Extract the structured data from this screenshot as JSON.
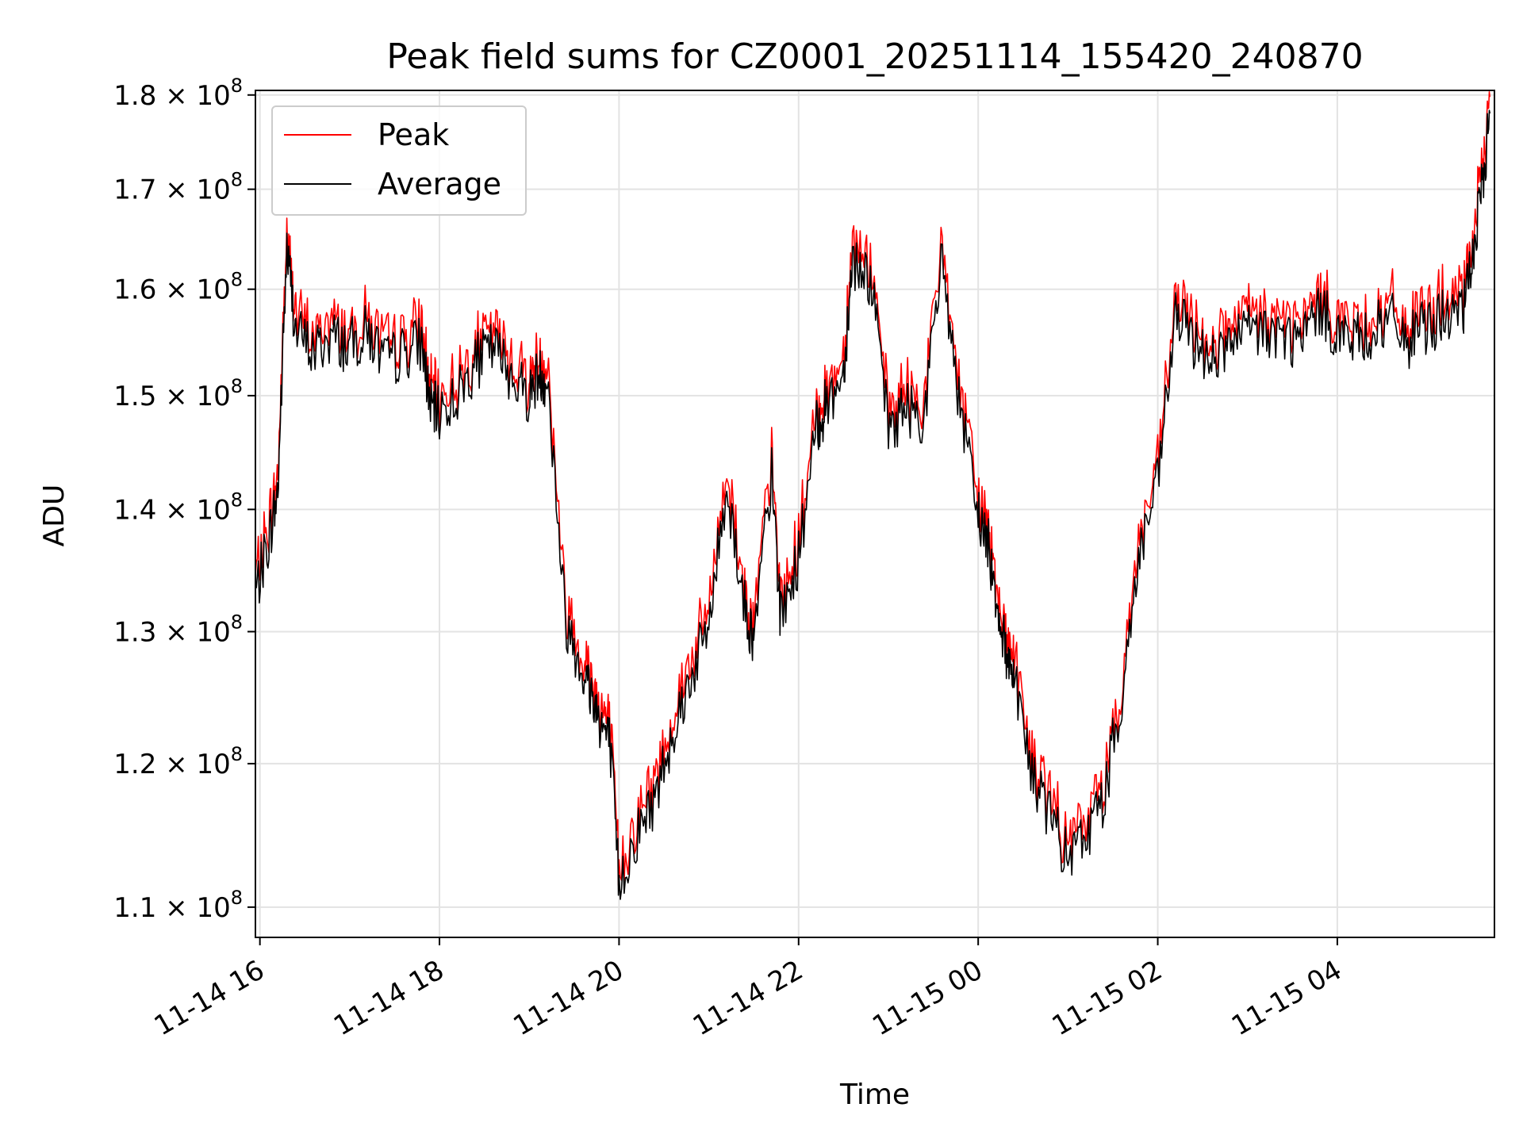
{
  "chart_data": {
    "type": "line",
    "title": "Peak field sums for CZ0001_20251114_155420_240870",
    "xlabel": "Time",
    "ylabel": "ADU",
    "yscale": "log",
    "ylim": [
      108000000,
      180500000
    ],
    "xlim_hours": [
      -0.05,
      13.75
    ],
    "x_reference": "11-14 16",
    "grid": true,
    "legend_position": "top-left",
    "x_ticks": [
      {
        "hours": 0,
        "label": "11-14 16"
      },
      {
        "hours": 2,
        "label": "11-14 18"
      },
      {
        "hours": 4,
        "label": "11-14 20"
      },
      {
        "hours": 6,
        "label": "11-14 22"
      },
      {
        "hours": 8,
        "label": "11-15 00"
      },
      {
        "hours": 10,
        "label": "11-15 02"
      },
      {
        "hours": 12,
        "label": "11-15 04"
      }
    ],
    "y_ticks": [
      {
        "value": 110000000,
        "mantissa": "1.1",
        "times": "×",
        "base": "10",
        "exp": "8"
      },
      {
        "value": 120000000,
        "mantissa": "1.2",
        "times": "×",
        "base": "10",
        "exp": "8"
      },
      {
        "value": 130000000,
        "mantissa": "1.3",
        "times": "×",
        "base": "10",
        "exp": "8"
      },
      {
        "value": 140000000,
        "mantissa": "1.4",
        "times": "×",
        "base": "10",
        "exp": "8"
      },
      {
        "value": 150000000,
        "mantissa": "1.5",
        "times": "×",
        "base": "10",
        "exp": "8"
      },
      {
        "value": 160000000,
        "mantissa": "1.6",
        "times": "×",
        "base": "10",
        "exp": "8"
      },
      {
        "value": 170000000,
        "mantissa": "1.7",
        "times": "×",
        "base": "10",
        "exp": "8"
      },
      {
        "value": 180000000,
        "mantissa": "1.8",
        "times": "×",
        "base": "10",
        "exp": "8"
      }
    ],
    "series": [
      {
        "name": "Peak",
        "color": "#ff0000"
      },
      {
        "name": "Average",
        "color": "#000000"
      }
    ],
    "average_anchors": {
      "x_hours": [
        -0.05,
        0.1,
        0.2,
        0.3,
        0.4,
        0.6,
        0.8,
        1.0,
        1.2,
        1.4,
        1.6,
        1.8,
        1.9,
        2.0,
        2.2,
        2.4,
        2.6,
        2.8,
        3.0,
        3.1,
        3.2,
        3.4,
        3.6,
        3.7,
        3.8,
        3.9,
        4.0,
        4.2,
        4.4,
        4.6,
        4.8,
        5.0,
        5.2,
        5.4,
        5.5,
        5.7,
        5.8,
        6.0,
        6.2,
        6.3,
        6.5,
        6.6,
        6.8,
        7.0,
        7.2,
        7.4,
        7.6,
        7.8,
        8.0,
        8.1,
        8.2,
        8.3,
        8.4,
        8.6,
        8.8,
        9.0,
        9.2,
        9.4,
        9.6,
        9.8,
        10.0,
        10.2,
        10.4,
        10.6,
        10.8,
        11.0,
        11.2,
        11.4,
        11.6,
        11.8,
        12.0,
        12.2,
        12.4,
        12.6,
        12.8,
        13.0,
        13.2,
        13.4,
        13.5,
        13.6,
        13.7
      ],
      "values": [
        133000000,
        137500000,
        141500000,
        164000000,
        156000000,
        154000000,
        155500000,
        154500000,
        156000000,
        153000000,
        154000000,
        155000000,
        149000000,
        148500000,
        150000000,
        153000000,
        154500000,
        152000000,
        150000000,
        152000000,
        151500000,
        131000000,
        127000000,
        125000000,
        123000000,
        121500000,
        111500000,
        115000000,
        117500000,
        122500000,
        126500000,
        130500000,
        142000000,
        132000000,
        129000000,
        143000000,
        131000000,
        136000000,
        147000000,
        149000000,
        152000000,
        163000000,
        161000000,
        147000000,
        149000000,
        148000000,
        163000000,
        148500000,
        139500000,
        137500000,
        133000000,
        128500000,
        127000000,
        119000000,
        116500000,
        113000000,
        115000000,
        117500000,
        125000000,
        136500000,
        142000000,
        157500000,
        155000000,
        153500000,
        154500000,
        156000000,
        156000000,
        155500000,
        155000000,
        158000000,
        156000000,
        155000000,
        156000000,
        157000000,
        155000000,
        156500000,
        157500000,
        157500000,
        163000000,
        169000000,
        178000000
      ]
    }
  }
}
